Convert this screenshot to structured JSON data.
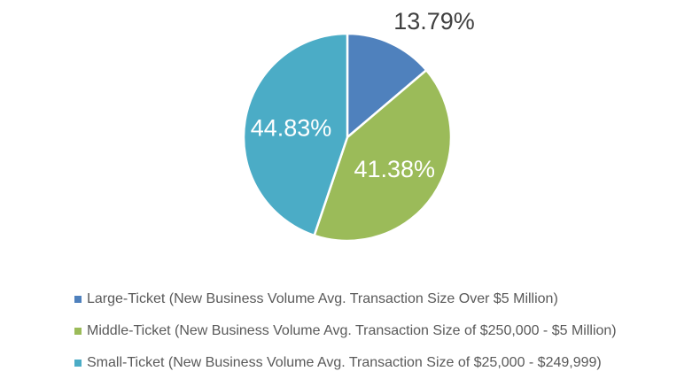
{
  "chart_data": {
    "type": "pie",
    "title": "",
    "categories": [
      "Large-Ticket (New Business Volume Avg. Transaction Size Over $5 Million)",
      "Middle-Ticket (New Business Volume Avg. Transaction Size of $250,000 - $5 Million)",
      "Small-Ticket (New Business Volume Avg. Transaction Size of $25,000 - $249,999)"
    ],
    "values": [
      13.79,
      41.38,
      44.83
    ],
    "data_labels": [
      "13.79%",
      "41.38%",
      "44.83%"
    ],
    "colors": [
      "#4F81BD",
      "#9BBB59",
      "#4BACC6"
    ],
    "legend_position": "bottom"
  }
}
